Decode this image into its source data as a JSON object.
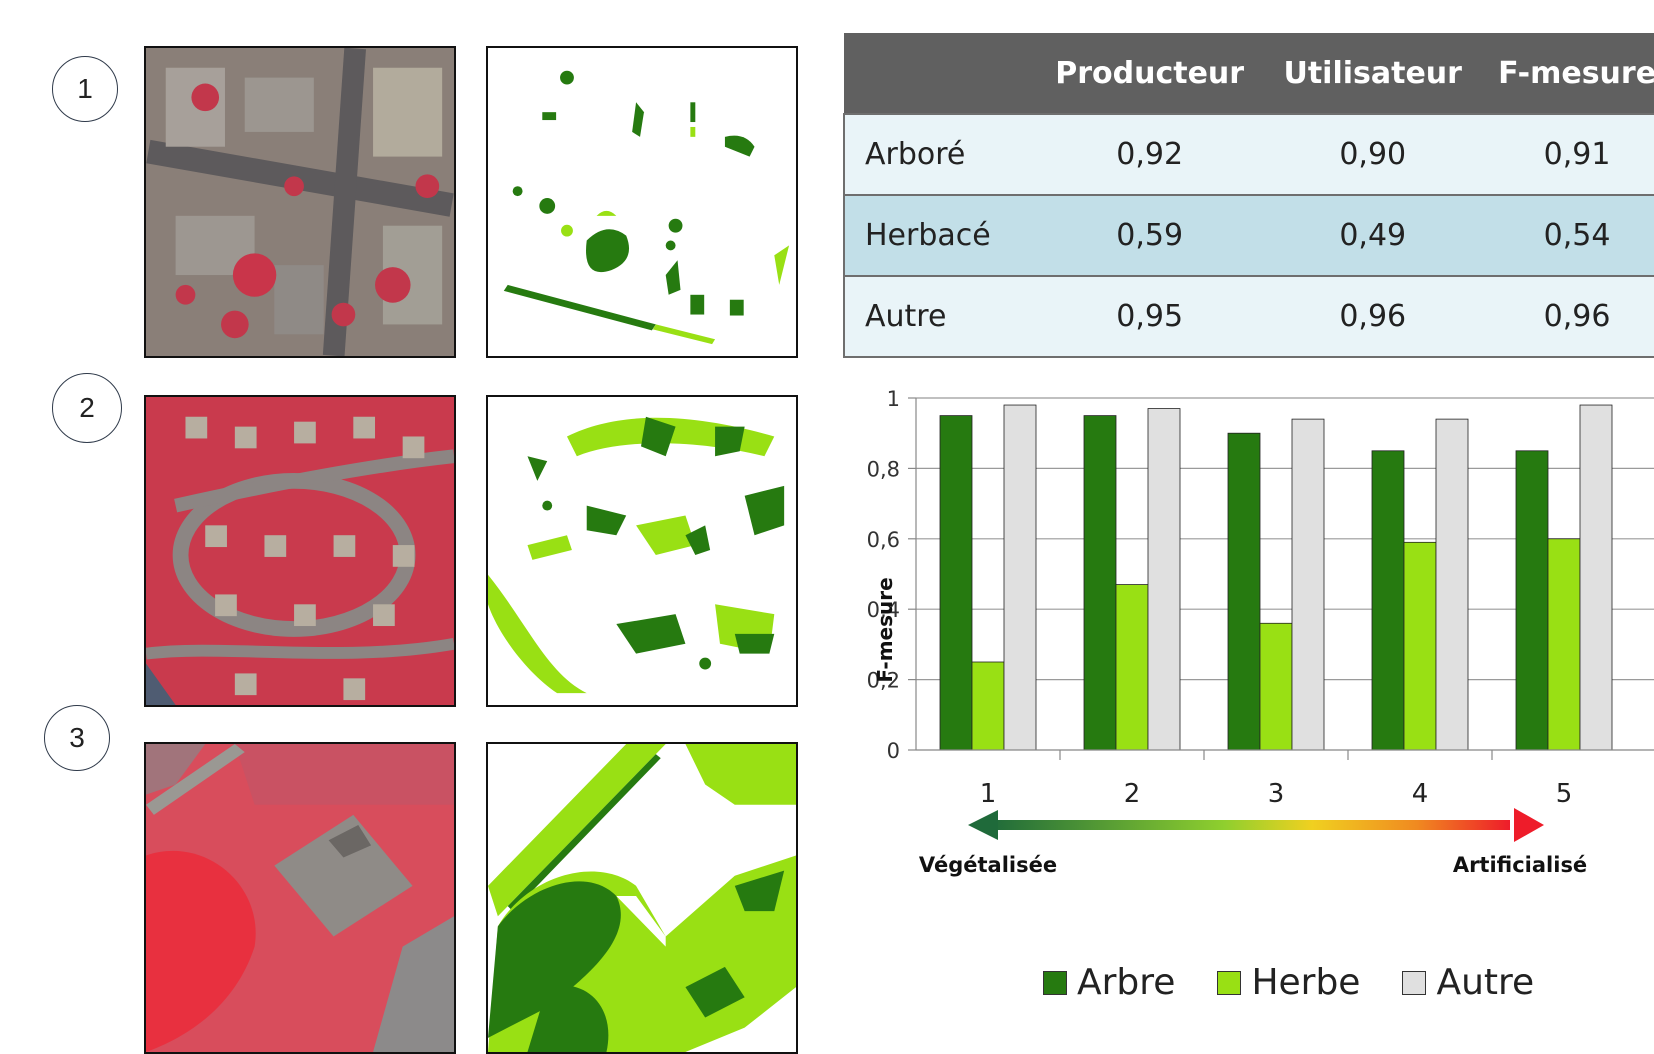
{
  "rows": [
    {
      "label": "1"
    },
    {
      "label": "2"
    },
    {
      "label": "3"
    }
  ],
  "table": {
    "headers": [
      "",
      "Producteur",
      "Utilisateur",
      "F-mesure"
    ],
    "rows": [
      {
        "label": "Arboré",
        "values": [
          "0,92",
          "0,90",
          "0,91"
        ]
      },
      {
        "label": "Herbacé",
        "values": [
          "0,59",
          "0,49",
          "0,54"
        ]
      },
      {
        "label": "Autre",
        "values": [
          "0,95",
          "0,96",
          "0,96"
        ]
      }
    ]
  },
  "chart_data": {
    "type": "bar",
    "categories": [
      "1",
      "2",
      "3",
      "4",
      "5"
    ],
    "series": [
      {
        "name": "Arbre",
        "values": [
          0.95,
          0.95,
          0.9,
          0.85,
          0.85
        ],
        "color": "#267a10"
      },
      {
        "name": "Herbe",
        "values": [
          0.25,
          0.47,
          0.36,
          0.59,
          0.6
        ],
        "color": "#99e014"
      },
      {
        "name": "Autre",
        "values": [
          0.98,
          0.97,
          0.94,
          0.94,
          0.98
        ],
        "color": "#e0e0e0"
      }
    ],
    "ylabel": "F-mesure",
    "xlabel": "",
    "ylim": [
      0,
      1
    ],
    "yticks": [
      "0",
      "0,2",
      "0,4",
      "0,6",
      "0,8",
      "1"
    ],
    "grid": true,
    "legend": "bottom",
    "gradient_arrow": {
      "left_label": "Végétalisée",
      "right_label": "Artificialisé"
    }
  },
  "colors": {
    "tree": "#267a10",
    "grass": "#99e014",
    "other": "#e0e0e0",
    "header_bg": "#606060"
  }
}
